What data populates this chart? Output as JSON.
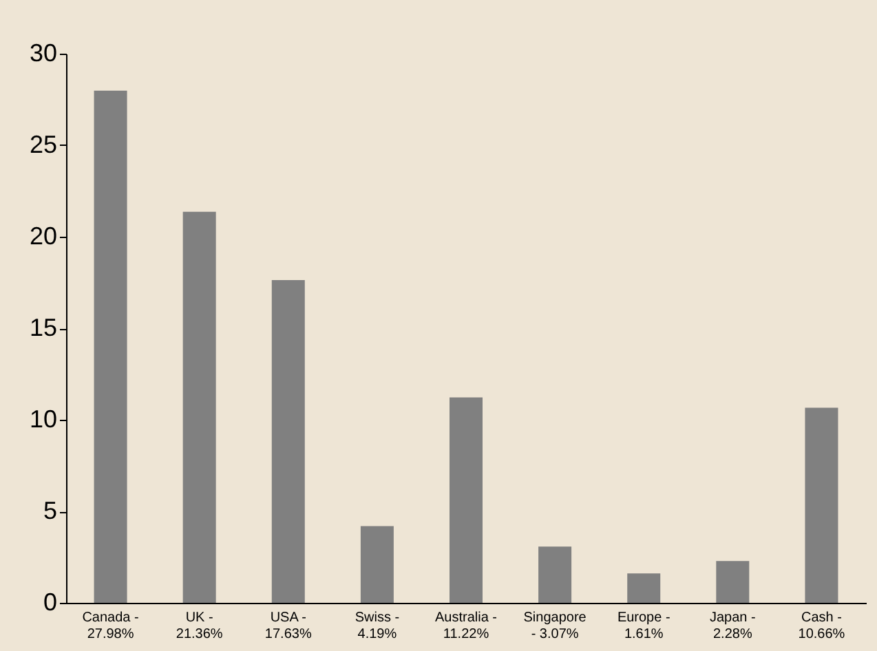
{
  "chart_data": {
    "type": "bar",
    "categories": [
      "Canada -\n27.98%",
      "UK -\n21.36%",
      "USA -\n17.63%",
      "Swiss -\n4.19%",
      "Australia -\n11.22%",
      "Singapore\n- 3.07%",
      "Europe -\n1.61%",
      "Japan -\n2.28%",
      "Cash -\n10.66%"
    ],
    "values": [
      27.98,
      21.36,
      17.63,
      4.19,
      11.22,
      3.07,
      1.61,
      2.28,
      10.66
    ],
    "color": "#808080",
    "ylim": [
      0,
      30
    ],
    "yticks": [
      0,
      5,
      10,
      15,
      20,
      25,
      30
    ],
    "grid": false
  }
}
